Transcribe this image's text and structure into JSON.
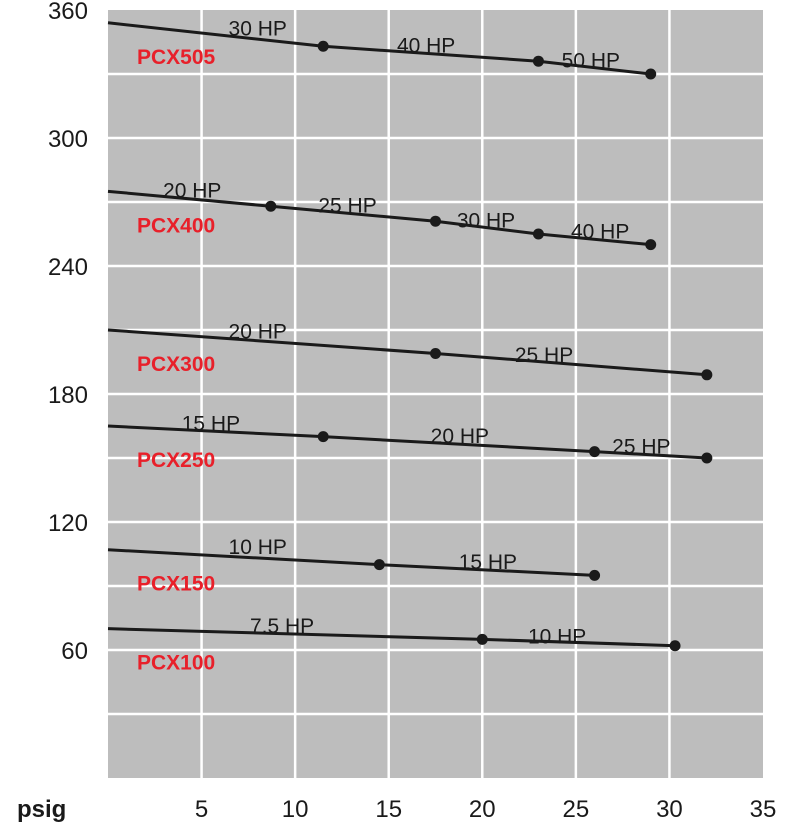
{
  "chart_data": {
    "type": "line",
    "title": "",
    "xlabel": "psig",
    "ylabel": "",
    "xlim": [
      0,
      35
    ],
    "ylim": [
      0,
      360
    ],
    "x_ticks": [
      5,
      10,
      15,
      20,
      25,
      30,
      35
    ],
    "y_ticks": [
      60,
      120,
      180,
      240,
      300,
      360
    ],
    "x_tick_labels": [
      "5",
      "10",
      "15",
      "20",
      "25",
      "30",
      "35"
    ],
    "y_tick_labels": [
      "60",
      "120",
      "180",
      "240",
      "300",
      "360"
    ],
    "grid": true,
    "colors": {
      "plot_bg": "#bdbdbd",
      "grid": "#ffffff",
      "line": "#1a1a1a",
      "model_label": "#e8202a"
    },
    "series": [
      {
        "name": "PCX505",
        "x": [
          0,
          11.5,
          23,
          29
        ],
        "y": [
          354,
          343,
          336,
          330
        ],
        "markers": [
          11.5,
          23,
          29
        ],
        "hp_labels": [
          {
            "text": "30 HP",
            "x": 8,
            "y": 348
          },
          {
            "text": "40 HP",
            "x": 17,
            "y": 340
          },
          {
            "text": "50 HP",
            "x": 25.8,
            "y": 333
          }
        ]
      },
      {
        "name": "PCX400",
        "x": [
          0,
          8.7,
          17.5,
          23,
          29
        ],
        "y": [
          275,
          268,
          261,
          255,
          250
        ],
        "markers": [
          8.7,
          17.5,
          23,
          29
        ],
        "hp_labels": [
          {
            "text": "20 HP",
            "x": 4.5,
            "y": 272
          },
          {
            "text": "25 HP",
            "x": 12.8,
            "y": 265
          },
          {
            "text": "30 HP",
            "x": 20.2,
            "y": 258
          },
          {
            "text": "40 HP",
            "x": 26.3,
            "y": 253
          }
        ]
      },
      {
        "name": "PCX300",
        "x": [
          0,
          17.5,
          32
        ],
        "y": [
          210,
          199,
          189
        ],
        "markers": [
          17.5,
          32
        ],
        "hp_labels": [
          {
            "text": "20 HP",
            "x": 8,
            "y": 206
          },
          {
            "text": "25 HP",
            "x": 23.3,
            "y": 195
          }
        ]
      },
      {
        "name": "PCX250",
        "x": [
          0,
          11.5,
          26,
          32
        ],
        "y": [
          165,
          160,
          153,
          150
        ],
        "markers": [
          11.5,
          26,
          32
        ],
        "hp_labels": [
          {
            "text": "15 HP",
            "x": 5.5,
            "y": 163
          },
          {
            "text": "20 HP",
            "x": 18.8,
            "y": 157
          },
          {
            "text": "25 HP",
            "x": 28.5,
            "y": 152
          }
        ]
      },
      {
        "name": "PCX150",
        "x": [
          0,
          14.5,
          26
        ],
        "y": [
          107,
          100,
          95
        ],
        "markers": [
          14.5,
          26
        ],
        "hp_labels": [
          {
            "text": "10 HP",
            "x": 8,
            "y": 105
          },
          {
            "text": "15 HP",
            "x": 20.3,
            "y": 98
          }
        ]
      },
      {
        "name": "PCX100",
        "x": [
          0,
          20,
          30.3
        ],
        "y": [
          70,
          65,
          62
        ],
        "markers": [
          20,
          30.3
        ],
        "hp_labels": [
          {
            "text": "7.5 HP",
            "x": 9.3,
            "y": 68
          },
          {
            "text": "10 HP",
            "x": 24,
            "y": 63
          }
        ]
      }
    ]
  }
}
